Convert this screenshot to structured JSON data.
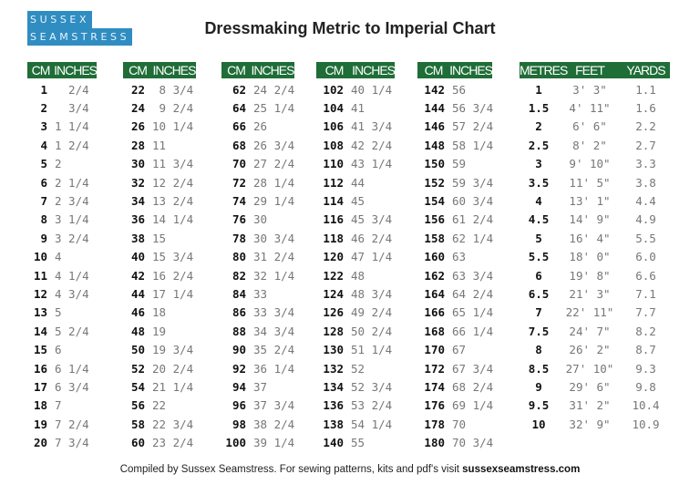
{
  "logo": {
    "line1": "SUSSEX",
    "line2": "SEAMSTRESS",
    "color": "#2f8dc2"
  },
  "title": "Dressmaking Metric to Imperial Chart",
  "header_color": "#1f6d37",
  "cm_tables": [
    {
      "headers": [
        "CM",
        "INCHES"
      ],
      "rows": [
        [
          "1",
          "  2/4"
        ],
        [
          "2",
          "  3/4"
        ],
        [
          "3",
          "1 1/4"
        ],
        [
          "4",
          "1 2/4"
        ],
        [
          "5",
          "2"
        ],
        [
          "6",
          "2 1/4"
        ],
        [
          "7",
          "2 3/4"
        ],
        [
          "8",
          "3 1/4"
        ],
        [
          "9",
          "3 2/4"
        ],
        [
          "10",
          "4"
        ],
        [
          "11",
          "4 1/4"
        ],
        [
          "12",
          "4 3/4"
        ],
        [
          "13",
          "5"
        ],
        [
          "14",
          "5 2/4"
        ],
        [
          "15",
          "6"
        ],
        [
          "16",
          "6 1/4"
        ],
        [
          "17",
          "6 3/4"
        ],
        [
          "18",
          "7"
        ],
        [
          "19",
          "7 2/4"
        ],
        [
          "20",
          "7 3/4"
        ]
      ]
    },
    {
      "headers": [
        "CM",
        "INCHES"
      ],
      "rows": [
        [
          "22",
          " 8 3/4"
        ],
        [
          "24",
          " 9 2/4"
        ],
        [
          "26",
          "10 1/4"
        ],
        [
          "28",
          "11"
        ],
        [
          "30",
          "11 3/4"
        ],
        [
          "32",
          "12 2/4"
        ],
        [
          "34",
          "13 2/4"
        ],
        [
          "36",
          "14 1/4"
        ],
        [
          "38",
          "15"
        ],
        [
          "40",
          "15 3/4"
        ],
        [
          "42",
          "16 2/4"
        ],
        [
          "44",
          "17 1/4"
        ],
        [
          "46",
          "18"
        ],
        [
          "48",
          "19"
        ],
        [
          "50",
          "19 3/4"
        ],
        [
          "52",
          "20 2/4"
        ],
        [
          "54",
          "21 1/4"
        ],
        [
          "56",
          "22"
        ],
        [
          "58",
          "22 3/4"
        ],
        [
          "60",
          "23 2/4"
        ]
      ]
    },
    {
      "headers": [
        "CM",
        "INCHES"
      ],
      "rows": [
        [
          "62",
          "24 2/4"
        ],
        [
          "64",
          "25 1/4"
        ],
        [
          "66",
          "26"
        ],
        [
          "68",
          "26 3/4"
        ],
        [
          "70",
          "27 2/4"
        ],
        [
          "72",
          "28 1/4"
        ],
        [
          "74",
          "29 1/4"
        ],
        [
          "76",
          "30"
        ],
        [
          "78",
          "30 3/4"
        ],
        [
          "80",
          "31 2/4"
        ],
        [
          "82",
          "32 1/4"
        ],
        [
          "84",
          "33"
        ],
        [
          "86",
          "33 3/4"
        ],
        [
          "88",
          "34 3/4"
        ],
        [
          "90",
          "35 2/4"
        ],
        [
          "92",
          "36 1/4"
        ],
        [
          "94",
          "37"
        ],
        [
          "96",
          "37 3/4"
        ],
        [
          "98",
          "38 2/4"
        ],
        [
          "100",
          "39 1/4"
        ]
      ]
    },
    {
      "headers": [
        "CM",
        "INCHES"
      ],
      "rows": [
        [
          "102",
          "40 1/4"
        ],
        [
          "104",
          "41"
        ],
        [
          "106",
          "41 3/4"
        ],
        [
          "108",
          "42 2/4"
        ],
        [
          "110",
          "43 1/4"
        ],
        [
          "112",
          "44"
        ],
        [
          "114",
          "45"
        ],
        [
          "116",
          "45 3/4"
        ],
        [
          "118",
          "46 2/4"
        ],
        [
          "120",
          "47 1/4"
        ],
        [
          "122",
          "48"
        ],
        [
          "124",
          "48 3/4"
        ],
        [
          "126",
          "49 2/4"
        ],
        [
          "128",
          "50 2/4"
        ],
        [
          "130",
          "51 1/4"
        ],
        [
          "132",
          "52"
        ],
        [
          "134",
          "52 3/4"
        ],
        [
          "136",
          "53 2/4"
        ],
        [
          "138",
          "54 1/4"
        ],
        [
          "140",
          "55"
        ]
      ]
    },
    {
      "headers": [
        "CM",
        "INCHES"
      ],
      "rows": [
        [
          "142",
          "56"
        ],
        [
          "144",
          "56 3/4"
        ],
        [
          "146",
          "57 2/4"
        ],
        [
          "148",
          "58 1/4"
        ],
        [
          "150",
          "59"
        ],
        [
          "152",
          "59 3/4"
        ],
        [
          "154",
          "60 3/4"
        ],
        [
          "156",
          "61 2/4"
        ],
        [
          "158",
          "62 1/4"
        ],
        [
          "160",
          "63"
        ],
        [
          "162",
          "63 3/4"
        ],
        [
          "164",
          "64 2/4"
        ],
        [
          "166",
          "65 1/4"
        ],
        [
          "168",
          "66 1/4"
        ],
        [
          "170",
          "67"
        ],
        [
          "172",
          "67 3/4"
        ],
        [
          "174",
          "68 2/4"
        ],
        [
          "176",
          "69 1/4"
        ],
        [
          "178",
          "70"
        ],
        [
          "180",
          "70 3/4"
        ]
      ]
    }
  ],
  "metre_table": {
    "headers": [
      "METRES",
      "FEET",
      "YARDS"
    ],
    "rows": [
      [
        "1",
        "3' 3\"",
        "1.1"
      ],
      [
        "1.5",
        "4' 11\"",
        "1.6"
      ],
      [
        "2",
        "6' 6\"",
        "2.2"
      ],
      [
        "2.5",
        "8' 2\"",
        "2.7"
      ],
      [
        "3",
        "9' 10\"",
        "3.3"
      ],
      [
        "3.5",
        "11' 5\"",
        "3.8"
      ],
      [
        "4",
        "13' 1\"",
        "4.4"
      ],
      [
        "4.5",
        "14' 9\"",
        "4.9"
      ],
      [
        "5",
        "16' 4\"",
        "5.5"
      ],
      [
        "5.5",
        "18' 0\"",
        "6.0"
      ],
      [
        "6",
        "19' 8\"",
        "6.6"
      ],
      [
        "6.5",
        "21' 3\"",
        "7.1"
      ],
      [
        "7",
        "22' 11\"",
        "7.7"
      ],
      [
        "7.5",
        "24' 7\"",
        "8.2"
      ],
      [
        "8",
        "26' 2\"",
        "8.7"
      ],
      [
        "8.5",
        "27' 10\"",
        "9.3"
      ],
      [
        "9",
        "29' 6\"",
        "9.8"
      ],
      [
        "9.5",
        "31' 2\"",
        "10.4"
      ],
      [
        "10",
        "32' 9\"",
        "10.9"
      ]
    ]
  },
  "footer": {
    "text": "Compiled by Sussex Seamstress.  For sewing patterns, kits and pdf's visit ",
    "link": "sussexseamstress.com"
  }
}
